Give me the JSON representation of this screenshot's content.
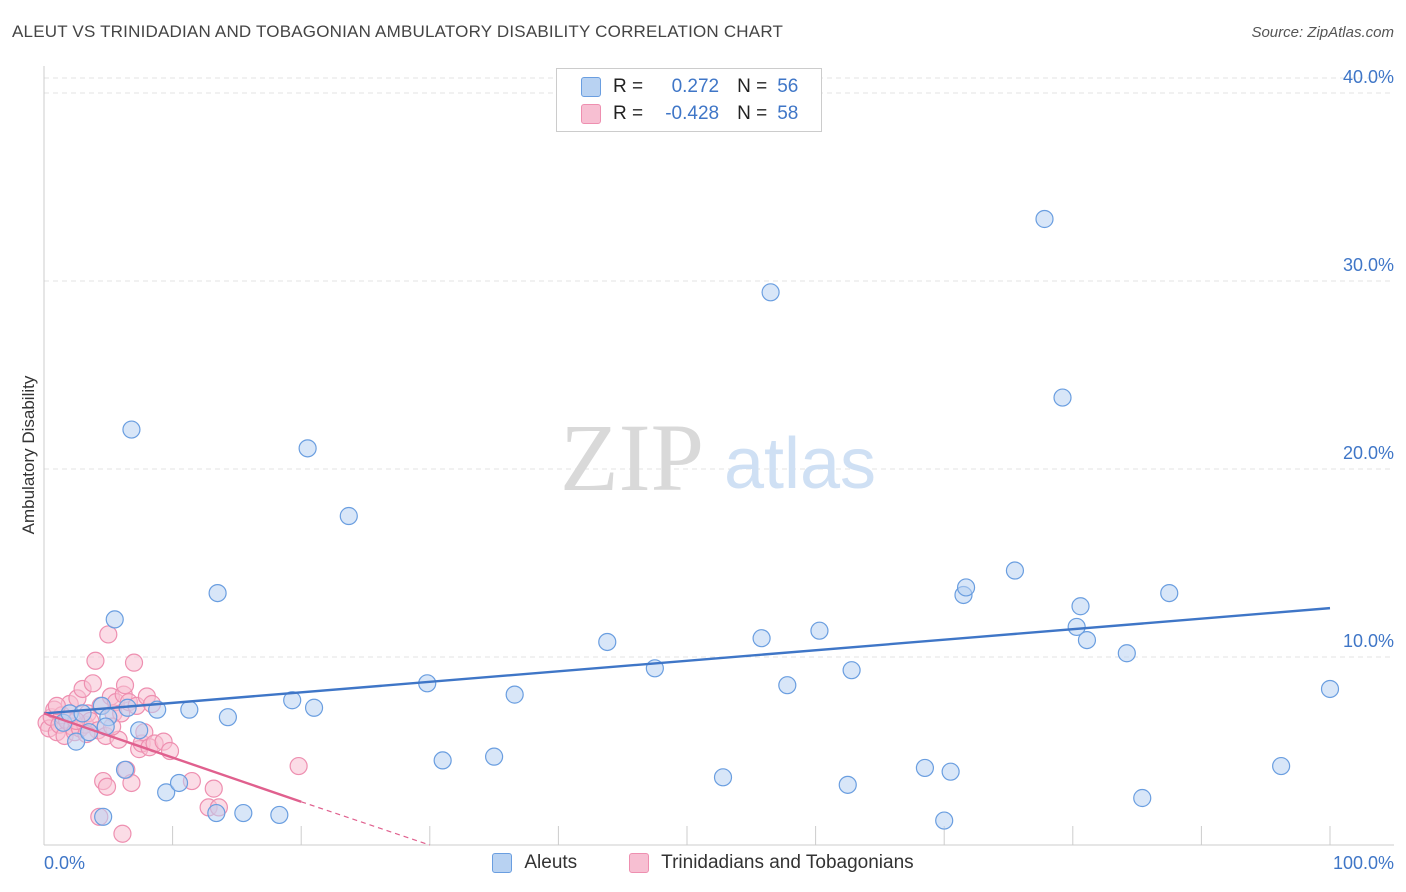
{
  "title": "ALEUT VS TRINIDADIAN AND TOBAGONIAN AMBULATORY DISABILITY CORRELATION CHART",
  "source": "Source: ZipAtlas.com",
  "watermark": {
    "zip": "ZIP",
    "atlas": "atlas"
  },
  "colors": {
    "blue": "#3f76c7",
    "blue_fill": "#b8d2f2",
    "blue_edge": "#6a9ee0",
    "pink": "#e0608e",
    "pink_fill": "#f7bfd2",
    "pink_edge": "#ee8fb0",
    "grid": "#e3e3e3"
  },
  "legend": {
    "rows": [
      {
        "r_label": "R =",
        "r_value": "0.272",
        "n_label": "N =",
        "n_value": "56"
      },
      {
        "r_label": "R =",
        "r_value": "-0.428",
        "n_label": "N =",
        "n_value": "58"
      }
    ]
  },
  "bottom_legend": [
    "Aleuts",
    "Trinidadians and Tobagonians"
  ],
  "chart_data": {
    "type": "scatter",
    "title": "ALEUT VS TRINIDADIAN AND TOBAGONIAN AMBULATORY DISABILITY CORRELATION CHART",
    "xlabel": "",
    "ylabel": "Ambulatory Disability",
    "xlim": [
      0,
      100
    ],
    "ylim": [
      0,
      40.8
    ],
    "x_tick_labels": [
      "0.0%",
      "100.0%"
    ],
    "y_ticks": [
      10,
      20,
      30,
      40
    ],
    "y_tick_labels": [
      "10.0%",
      "20.0%",
      "30.0%",
      "40.0%"
    ],
    "grid": true,
    "series": [
      {
        "name": "Aleuts",
        "color": "blue",
        "trend": {
          "x0": 0,
          "y0": 7.0,
          "x1": 100,
          "y1": 12.6,
          "dashed_from": null
        },
        "points": [
          [
            1.5,
            6.5
          ],
          [
            2,
            7
          ],
          [
            2.5,
            5.5
          ],
          [
            3.5,
            6.0
          ],
          [
            4.5,
            7.4
          ],
          [
            5,
            6.8
          ],
          [
            6.5,
            7.3
          ],
          [
            4.6,
            1.5
          ],
          [
            4.8,
            6.3
          ],
          [
            5.5,
            12
          ],
          [
            6.3,
            4.0
          ],
          [
            6.8,
            22.1
          ],
          [
            7.4,
            6.1
          ],
          [
            8.8,
            7.2
          ],
          [
            9.5,
            2.8
          ],
          [
            10.5,
            3.3
          ],
          [
            11.3,
            7.2
          ],
          [
            13.4,
            1.7
          ],
          [
            13.5,
            13.4
          ],
          [
            14.3,
            6.8
          ],
          [
            15.5,
            1.7
          ],
          [
            18.3,
            1.6
          ],
          [
            19.3,
            7.7
          ],
          [
            20.5,
            21.1
          ],
          [
            21,
            7.3
          ],
          [
            23.7,
            17.5
          ],
          [
            29.8,
            8.6
          ],
          [
            31,
            4.5
          ],
          [
            35,
            4.7
          ],
          [
            36.6,
            8.0
          ],
          [
            43.8,
            10.8
          ],
          [
            47.5,
            9.4
          ],
          [
            52.8,
            3.6
          ],
          [
            55.8,
            11.0
          ],
          [
            56.5,
            29.4
          ],
          [
            57.8,
            8.5
          ],
          [
            60.3,
            11.4
          ],
          [
            62.5,
            3.2
          ],
          [
            62.8,
            9.3
          ],
          [
            68.5,
            4.1
          ],
          [
            70,
            1.3
          ],
          [
            70.5,
            3.9
          ],
          [
            71.5,
            13.3
          ],
          [
            71.7,
            13.7
          ],
          [
            75.5,
            14.6
          ],
          [
            77.8,
            33.3
          ],
          [
            79.2,
            23.8
          ],
          [
            80.3,
            11.6
          ],
          [
            80.6,
            12.7
          ],
          [
            81.1,
            10.9
          ],
          [
            84.2,
            10.2
          ],
          [
            85.4,
            2.5
          ],
          [
            87.5,
            13.4
          ],
          [
            96.2,
            4.2
          ],
          [
            100,
            8.3
          ],
          [
            3,
            7
          ]
        ]
      },
      {
        "name": "Trinidadians and Tobagonians",
        "color": "pink",
        "trend": {
          "x0": 0,
          "y0": 7.0,
          "x1": 20,
          "y1": 2.3,
          "dashed_from": 20,
          "dashed_to_x": 30,
          "dashed_to_y": 0
        },
        "points": [
          [
            0.2,
            6.5
          ],
          [
            0.4,
            6.2
          ],
          [
            0.6,
            6.8
          ],
          [
            0.8,
            7.2
          ],
          [
            1.0,
            6.0
          ],
          [
            1.2,
            6.4
          ],
          [
            1.4,
            6.9
          ],
          [
            1.6,
            5.8
          ],
          [
            1.8,
            6.6
          ],
          [
            2.0,
            7.5
          ],
          [
            2.2,
            6.3
          ],
          [
            2.4,
            6.0
          ],
          [
            2.6,
            7.8
          ],
          [
            2.8,
            6.2
          ],
          [
            3.0,
            8.3
          ],
          [
            3.2,
            6.4
          ],
          [
            3.4,
            7.0
          ],
          [
            3.6,
            6.6
          ],
          [
            3.8,
            8.6
          ],
          [
            4.0,
            9.8
          ],
          [
            4.2,
            6.1
          ],
          [
            4.4,
            7.4
          ],
          [
            4.6,
            3.4
          ],
          [
            4.8,
            5.8
          ],
          [
            5.0,
            11.2
          ],
          [
            5.2,
            7.9
          ],
          [
            5.4,
            7.0
          ],
          [
            5.6,
            7.6
          ],
          [
            5.8,
            5.6
          ],
          [
            6.0,
            7.0
          ],
          [
            6.2,
            8.0
          ],
          [
            6.4,
            4.0
          ],
          [
            6.6,
            7.6
          ],
          [
            6.8,
            3.3
          ],
          [
            7.0,
            9.7
          ],
          [
            7.2,
            7.4
          ],
          [
            7.4,
            5.1
          ],
          [
            7.6,
            5.4
          ],
          [
            7.8,
            6.0
          ],
          [
            8.0,
            7.9
          ],
          [
            8.2,
            5.2
          ],
          [
            8.4,
            7.5
          ],
          [
            8.6,
            5.4
          ],
          [
            4.3,
            1.5
          ],
          [
            4.9,
            3.1
          ],
          [
            6.1,
            0.6
          ],
          [
            9.3,
            5.5
          ],
          [
            9.8,
            5.0
          ],
          [
            11.5,
            3.4
          ],
          [
            12.8,
            2.0
          ],
          [
            13.2,
            3.0
          ],
          [
            13.6,
            2.0
          ],
          [
            19.8,
            4.2
          ],
          [
            1.0,
            7.4
          ],
          [
            2.5,
            6.6
          ],
          [
            3.3,
            5.9
          ],
          [
            5.3,
            6.3
          ],
          [
            6.3,
            8.5
          ]
        ]
      }
    ]
  }
}
